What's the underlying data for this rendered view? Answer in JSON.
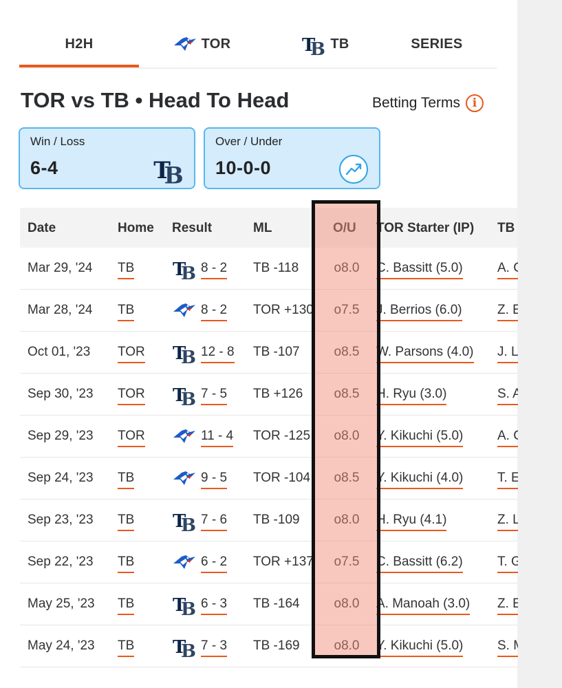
{
  "tabs": [
    {
      "label": "H2H",
      "icon": "",
      "active": true
    },
    {
      "label": "TOR",
      "icon": "blue-jays-logo-icon"
    },
    {
      "label": "TB",
      "icon": "rays-logo-icon"
    },
    {
      "label": "SERIES",
      "icon": ""
    }
  ],
  "title": "TOR vs TB • Head To Head",
  "betting_terms": "Betting Terms",
  "summary": {
    "win_loss": {
      "caption": "Win / Loss",
      "value": "6-4",
      "icon": "rays-logo-icon"
    },
    "over_under": {
      "caption": "Over / Under",
      "value": "10-0-0",
      "icon": "trend-up-icon"
    }
  },
  "columns": [
    "Date",
    "Home",
    "Result",
    "ML",
    "O/U",
    "TOR Starter (IP)",
    "TB"
  ],
  "rows": [
    {
      "date": "Mar 29, '24",
      "home": "TB",
      "winner": "TB",
      "result": "8 - 2",
      "ml": "TB -118",
      "ou": "o8.0",
      "tor_starter": "C. Bassitt (5.0)",
      "tb_starter": "A. C"
    },
    {
      "date": "Mar 28, '24",
      "home": "TB",
      "winner": "TOR",
      "result": "8 - 2",
      "ml": "TOR +130",
      "ou": "o7.5",
      "tor_starter": "J. Berrios (6.0)",
      "tb_starter": "Z. E"
    },
    {
      "date": "Oct 01, '23",
      "home": "TOR",
      "winner": "TB",
      "result": "12 - 8",
      "ml": "TB -107",
      "ou": "o8.5",
      "tor_starter": "W. Parsons (4.0)",
      "tb_starter": "J. L"
    },
    {
      "date": "Sep 30, '23",
      "home": "TOR",
      "winner": "TB",
      "result": "7 - 5",
      "ml": "TB +126",
      "ou": "o8.5",
      "tor_starter": "H. Ryu (3.0)",
      "tb_starter": "S. A"
    },
    {
      "date": "Sep 29, '23",
      "home": "TOR",
      "winner": "TOR",
      "result": "11 - 4",
      "ml": "TOR -125",
      "ou": "o8.0",
      "tor_starter": "Y. Kikuchi (5.0)",
      "tb_starter": "A. C"
    },
    {
      "date": "Sep 24, '23",
      "home": "TB",
      "winner": "TOR",
      "result": "9 - 5",
      "ml": "TOR -104",
      "ou": "o8.5",
      "tor_starter": "Y. Kikuchi (4.0)",
      "tb_starter": "T. E"
    },
    {
      "date": "Sep 23, '23",
      "home": "TB",
      "winner": "TB",
      "result": "7 - 6",
      "ml": "TB -109",
      "ou": "o8.0",
      "tor_starter": "H. Ryu (4.1)",
      "tb_starter": "Z. L"
    },
    {
      "date": "Sep 22, '23",
      "home": "TB",
      "winner": "TOR",
      "result": "6 - 2",
      "ml": "TOR +137",
      "ou": "o7.5",
      "tor_starter": "C. Bassitt (6.2)",
      "tb_starter": "T. G"
    },
    {
      "date": "May 25, '23",
      "home": "TB",
      "winner": "TB",
      "result": "6 - 3",
      "ml": "TB -164",
      "ou": "o8.0",
      "tor_starter": "A. Manoah (3.0)",
      "tb_starter": "Z. E"
    },
    {
      "date": "May 24, '23",
      "home": "TB",
      "winner": "TB",
      "result": "7 - 3",
      "ml": "TB -169",
      "ou": "o8.0",
      "tor_starter": "Y. Kikuchi (5.0)",
      "tb_starter": "S. M"
    }
  ],
  "colors": {
    "accent": "#e9581b",
    "card_bg": "#d4ecfb",
    "card_border": "#58b7ee",
    "highlight": "#f3b7a9",
    "rays_navy": "#0b2447",
    "jays_blue": "#1d5cc7"
  }
}
